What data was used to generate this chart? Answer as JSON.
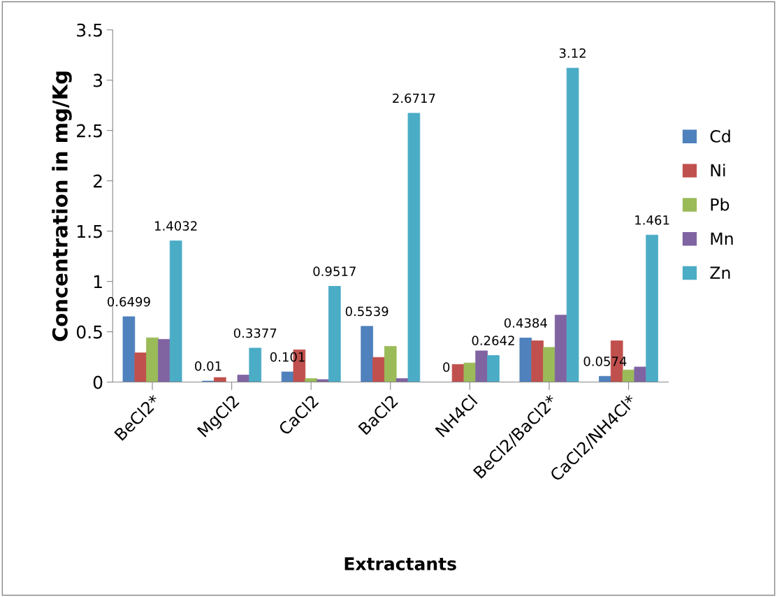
{
  "chart_data": {
    "type": "bar",
    "xlabel": "Extractants",
    "ylabel": "Concentration in mg/Kg",
    "categories": [
      "BeCl2*",
      "MgCl2",
      "CaCl2",
      "BaCl2",
      "NH4Cl",
      "BeCl2/BaCl2*",
      "CaCl2/NH4Cl*"
    ],
    "series": [
      {
        "name": "Cd",
        "color": "#4f81bd",
        "values": [
          0.6499,
          0.01,
          0.101,
          0.5539,
          0,
          0.4384,
          0.0574
        ],
        "value_labels": [
          "0.6499",
          "0.01",
          "0.101",
          "0.5539",
          "0",
          "0.4384",
          "0.0574"
        ]
      },
      {
        "name": "Ni",
        "color": "#c0504d",
        "values": [
          0.29,
          0.045,
          0.32,
          0.245,
          0.175,
          0.41,
          0.41
        ]
      },
      {
        "name": "Pb",
        "color": "#9bbb59",
        "values": [
          0.44,
          0,
          0.035,
          0.355,
          0.19,
          0.345,
          0.12
        ]
      },
      {
        "name": "Mn",
        "color": "#8064a2",
        "values": [
          0.425,
          0.07,
          0.025,
          0.035,
          0.31,
          0.665,
          0.15
        ]
      },
      {
        "name": "Zn",
        "color": "#4bacc6",
        "values": [
          1.4032,
          0.3377,
          0.9517,
          2.6717,
          0.2642,
          3.12,
          1.461
        ],
        "value_labels": [
          "1.4032",
          "0.3377",
          "0.9517",
          "2.6717",
          "0.2642",
          "3.12",
          "1.461"
        ]
      }
    ],
    "ylim": [
      0,
      3.5
    ],
    "yticks": [
      0,
      0.5,
      1,
      1.5,
      2,
      2.5,
      3,
      3.5
    ],
    "grid": false,
    "legend": "right"
  }
}
